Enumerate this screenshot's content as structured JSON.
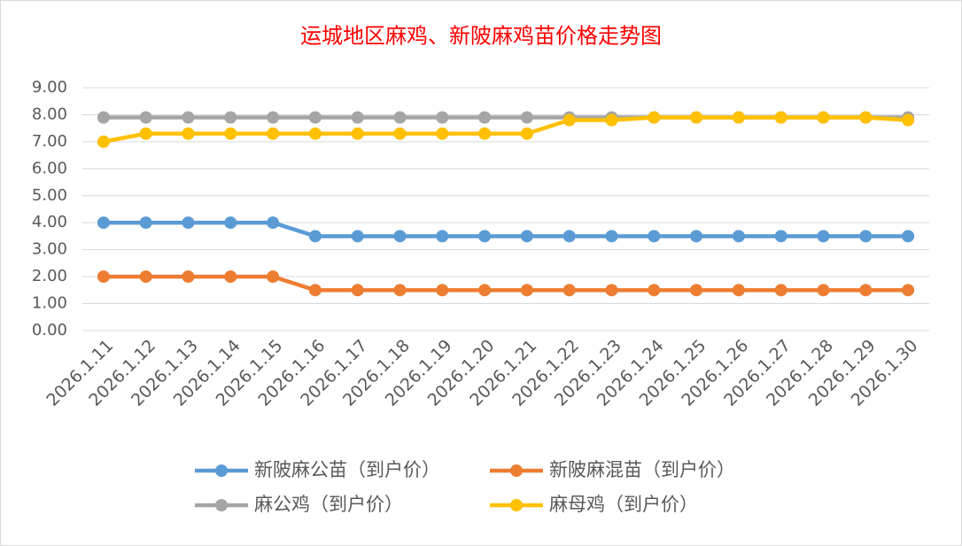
{
  "chart_data": {
    "type": "line",
    "title": "运城地区麻鸡、新陂麻鸡苗价格走势图",
    "categories": [
      "2026.1.11",
      "2026.1.12",
      "2026.1.13",
      "2026.1.14",
      "2026.1.15",
      "2026.1.16",
      "2026.1.17",
      "2026.1.18",
      "2026.1.19",
      "2026.1.20",
      "2026.1.21",
      "2026.1.22",
      "2026.1.23",
      "2026.1.24",
      "2026.1.25",
      "2026.1.26",
      "2026.1.27",
      "2026.1.28",
      "2026.1.29",
      "2026.1.30"
    ],
    "series": [
      {
        "name": "新陂麻公苗（到户价）",
        "color": "#5b9bd5",
        "values": [
          4,
          4,
          4,
          4,
          4,
          3.5,
          3.5,
          3.5,
          3.5,
          3.5,
          3.5,
          3.5,
          3.5,
          3.5,
          3.5,
          3.5,
          3.5,
          3.5,
          3.5,
          3.5
        ]
      },
      {
        "name": "新陂麻混苗（到户价）",
        "color": "#ed7d31",
        "values": [
          2,
          2,
          2,
          2,
          2,
          1.5,
          1.5,
          1.5,
          1.5,
          1.5,
          1.5,
          1.5,
          1.5,
          1.5,
          1.5,
          1.5,
          1.5,
          1.5,
          1.5,
          1.5
        ]
      },
      {
        "name": "麻公鸡（到户价）",
        "color": "#a5a5a5",
        "values": [
          7.9,
          7.9,
          7.9,
          7.9,
          7.9,
          7.9,
          7.9,
          7.9,
          7.9,
          7.9,
          7.9,
          7.9,
          7.9,
          7.9,
          7.9,
          7.9,
          7.9,
          7.9,
          7.9,
          7.9
        ]
      },
      {
        "name": "麻母鸡（到户价）",
        "color": "#ffc000",
        "values": [
          7,
          7.3,
          7.3,
          7.3,
          7.3,
          7.3,
          7.3,
          7.3,
          7.3,
          7.3,
          7.3,
          7.8,
          7.8,
          7.9,
          7.9,
          7.9,
          7.9,
          7.9,
          7.9,
          7.8
        ]
      }
    ],
    "ylim": [
      0,
      9
    ],
    "yticks": [
      {
        "value": 0,
        "label": "0.00"
      },
      {
        "value": 1,
        "label": "1.00"
      },
      {
        "value": 2,
        "label": "2.00"
      },
      {
        "value": 3,
        "label": "3.00"
      },
      {
        "value": 4,
        "label": "4.00"
      },
      {
        "value": 5,
        "label": "5.00"
      },
      {
        "value": 6,
        "label": "6.00"
      },
      {
        "value": 7,
        "label": "7.00"
      },
      {
        "value": 8,
        "label": "8.00"
      },
      {
        "value": 9,
        "label": "9.00"
      }
    ],
    "grid": true,
    "legend": "bottom",
    "title_color": "#ff0000"
  }
}
